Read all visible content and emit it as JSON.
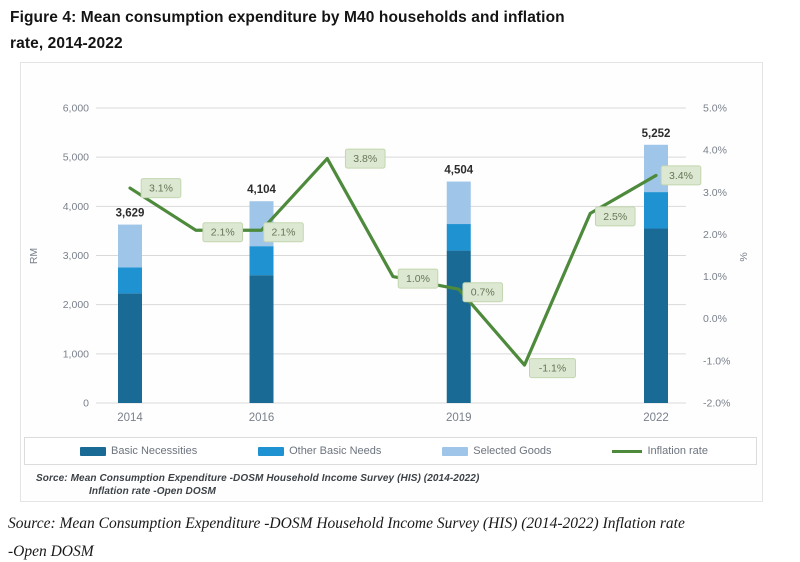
{
  "page": {
    "title_line1": "Figure 4: Mean consumption expenditure by M40 households and inflation",
    "title_line2": "rate, 2014-2022",
    "caption_line1": "Source: Mean Consumption Expenditure -DOSM Household Income Survey (HIS) (2014-2022) Inflation rate",
    "caption_line2": "-Open DOSM"
  },
  "chart_note": {
    "line1": "Sorce: Mean Consumption Expenditure -DOSM Household Income Survey (HIS) (2014-2022)",
    "line2": "Inflation rate -Open DOSM"
  },
  "chart_data": {
    "type": "combo",
    "bar_type": "stacked",
    "title": "Mean consumption expenditure by M40 households and inflation rate, 2014-2022",
    "categories": [
      "2014",
      "2016",
      "2019",
      "2022"
    ],
    "category_years": [
      2014,
      2016,
      2019,
      2022
    ],
    "bar_series": [
      {
        "name": "Basic Necessities",
        "color": "#196b96",
        "values": [
          2230,
          2600,
          3100,
          3550
        ]
      },
      {
        "name": "Other Basic Needs",
        "color": "#1f93d2",
        "values": [
          530,
          590,
          540,
          740
        ]
      },
      {
        "name": "Selected Goods",
        "color": "#9fc6e8",
        "values": [
          869,
          914,
          864,
          962
        ]
      }
    ],
    "bar_totals": [
      "3,629",
      "4,104",
      "4,504",
      "5,252"
    ],
    "line_series": {
      "name": "Inflation rate",
      "color": "#4e8a3c",
      "years": [
        2014,
        2015,
        2016,
        2017,
        2018,
        2019,
        2020,
        2021,
        2022
      ],
      "values": [
        3.1,
        2.1,
        2.1,
        3.8,
        1.0,
        0.7,
        -1.1,
        2.5,
        3.4
      ],
      "labels": [
        "3.1%",
        "2.1%",
        "2.1%",
        "3.8%",
        "1.0%",
        "0.7%",
        "-1.1%",
        "2.5%",
        "3.4%"
      ]
    },
    "point_label_style": {
      "fill": "#dce8d2",
      "border": "#c3d6b0",
      "text_color": "#667657"
    },
    "left_axis": {
      "title": "RM",
      "min": 0,
      "max": 6000,
      "step": 1000,
      "tick_labels": [
        "0",
        "1,000",
        "2,000",
        "3,000",
        "4,000",
        "5,000",
        "6,000"
      ]
    },
    "right_axis": {
      "title": "%",
      "min": -2.0,
      "max": 5.0,
      "step": 1.0,
      "tick_labels": [
        "-2.0%",
        "-1.0%",
        "0.0%",
        "1.0%",
        "2.0%",
        "3.0%",
        "4.0%",
        "5.0%"
      ]
    },
    "grid": true,
    "gridline_color": "#d9d9d9",
    "tick_text_color": "#7a808b",
    "total_label_color": "#2d2d2d",
    "legend_position": "bottom-boxed"
  }
}
